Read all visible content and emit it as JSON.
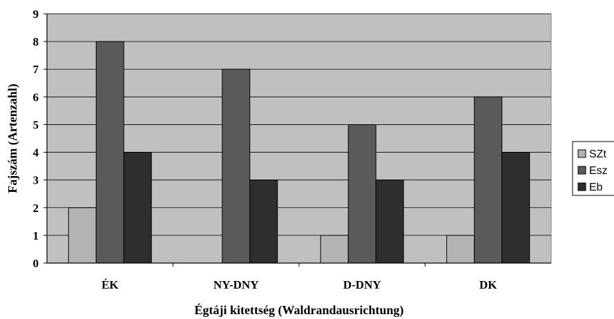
{
  "chart_data": {
    "type": "bar",
    "categories": [
      "ÉK",
      "NY-DNY",
      "D-DNY",
      "DK"
    ],
    "series": [
      {
        "name": "SZt",
        "values": [
          2,
          0,
          1,
          1
        ],
        "color": "#b3b3b3"
      },
      {
        "name": "Esz",
        "values": [
          8,
          7,
          5,
          6
        ],
        "color": "#5a5a5a"
      },
      {
        "name": "Eb",
        "values": [
          4,
          3,
          3,
          4
        ],
        "color": "#2e2e2e"
      }
    ],
    "title": "",
    "xlabel": "Égtáji kitettség (Waldrandausrichtung)",
    "ylabel": "Fajszám (Artenzahl)",
    "ylim": [
      0,
      9
    ],
    "yticks": [
      0,
      1,
      2,
      3,
      4,
      5,
      6,
      7,
      8,
      9
    ],
    "grid": true,
    "legend_position": "right",
    "plot_background": "#c0c0c0"
  }
}
